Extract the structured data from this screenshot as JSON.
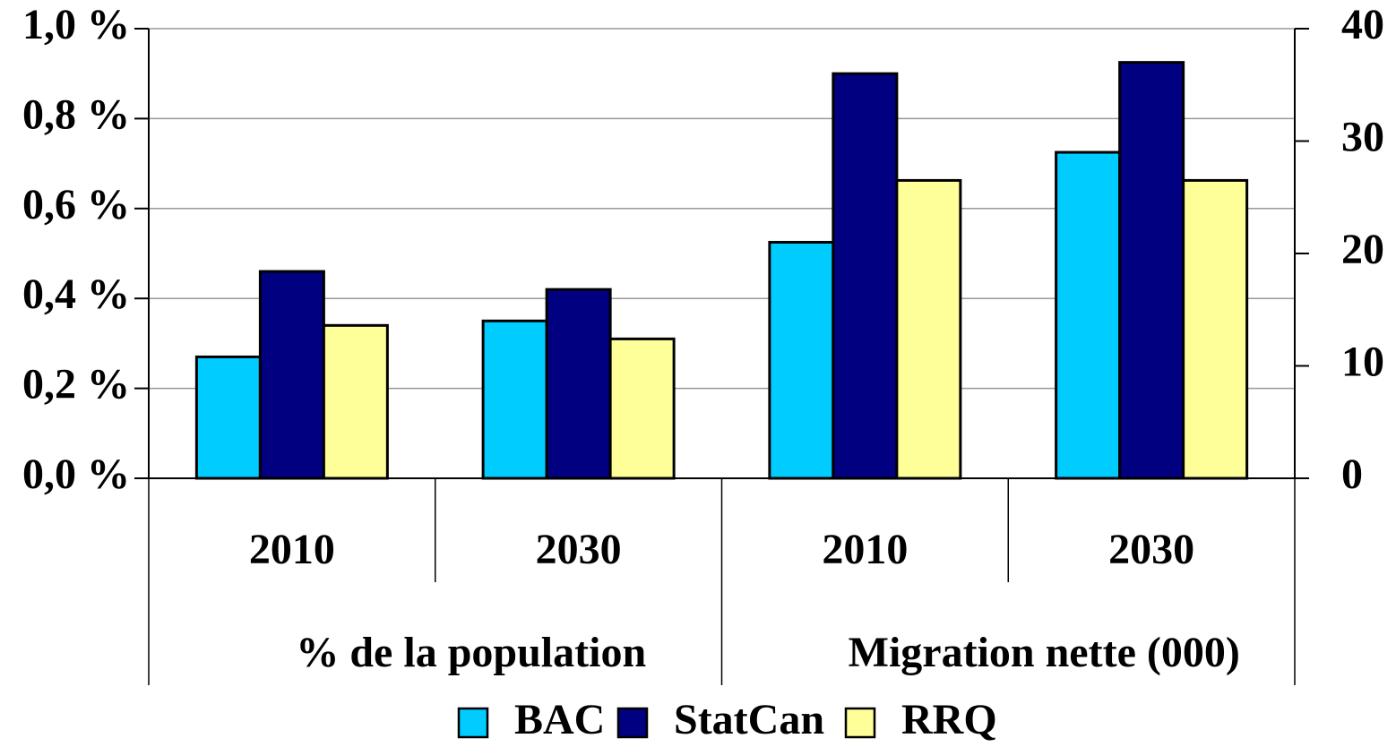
{
  "chart_data": {
    "type": "bar",
    "groups": [
      {
        "label": "% de la population",
        "axis": "y",
        "categories": [
          "2010",
          "2030"
        ]
      },
      {
        "label": "Migration nette (000)",
        "axis": "y2",
        "categories": [
          "2010",
          "2030"
        ]
      }
    ],
    "series": [
      {
        "name": "BAC",
        "color": "#00ccff",
        "values": [
          0.27,
          0.35,
          21,
          29
        ]
      },
      {
        "name": "StatCan",
        "color": "#000080",
        "values": [
          0.46,
          0.42,
          36,
          37
        ]
      },
      {
        "name": "RRQ",
        "color": "#ffff99",
        "values": [
          0.34,
          0.31,
          26.5,
          26.5
        ]
      }
    ],
    "ylim": [
      0,
      1
    ],
    "yticks": [
      {
        "value": 0,
        "label": "0,0 %"
      },
      {
        "value": 0.2,
        "label": "0,2 %"
      },
      {
        "value": 0.4,
        "label": "0,4 %"
      },
      {
        "value": 0.6,
        "label": "0,6 %"
      },
      {
        "value": 0.8,
        "label": "0,8 %"
      },
      {
        "value": 1,
        "label": "1,0 %"
      }
    ],
    "y2lim": [
      0,
      40
    ],
    "y2ticks": [
      0,
      10,
      20,
      30,
      40
    ],
    "grid": true
  }
}
